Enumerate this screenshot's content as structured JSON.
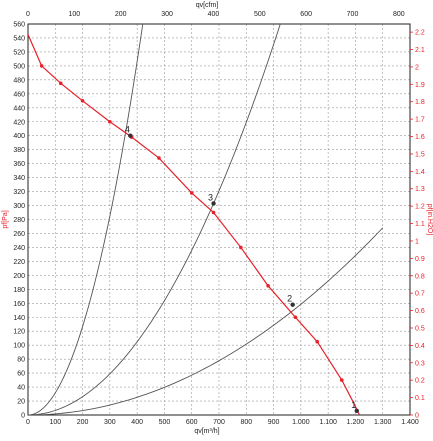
{
  "chart_data": {
    "type": "line",
    "title": "",
    "axes": {
      "x_bottom": {
        "label": "qv[m³/h]",
        "ticks": [
          "0",
          "100",
          "200",
          "300",
          "400",
          "500",
          "600",
          "700",
          "800",
          "900",
          "1.000",
          "1.100",
          "1.200",
          "1.300",
          "1.400"
        ],
        "range": [
          0,
          1400
        ]
      },
      "x_top": {
        "label": "qv[cfm]",
        "ticks": [
          "0",
          "100",
          "200",
          "300",
          "400",
          "500",
          "600",
          "700",
          "800"
        ],
        "range": [
          0,
          824
        ]
      },
      "y_left": {
        "label": "pf[Pa]",
        "ticks": [
          "0",
          "20",
          "40",
          "60",
          "80",
          "100",
          "120",
          "140",
          "160",
          "180",
          "200",
          "220",
          "240",
          "260",
          "280",
          "300",
          "320",
          "340",
          "360",
          "380",
          "400",
          "420",
          "440",
          "460",
          "480",
          "500",
          "520",
          "540",
          "560"
        ],
        "range": [
          0,
          560
        ]
      },
      "y_right": {
        "label": "pf[in.H2O]",
        "ticks": [
          "0",
          "0.1",
          "0.2",
          "0.3",
          "0.4",
          "0.5",
          "0.6",
          "0.7",
          "0.8",
          "0.9",
          "1",
          "1.1",
          "1.2",
          "1.3",
          "1.4",
          "1.5",
          "1.6",
          "1.7",
          "1.8",
          "1.9",
          "2",
          "2.1",
          "2.2"
        ],
        "range": [
          0,
          2.2466
        ]
      }
    },
    "grid": true,
    "series": [
      {
        "kind": "fan-curve",
        "color": "#e8202a",
        "x": [
          0,
          50,
          120,
          200,
          300,
          380,
          480,
          600,
          680,
          780,
          880,
          980,
          1060,
          1150,
          1190,
          1215
        ],
        "y": [
          545,
          500,
          475,
          450,
          420,
          398,
          368,
          318,
          290,
          240,
          185,
          140,
          105,
          50,
          20,
          0
        ],
        "markers_x": [
          50,
          120,
          200,
          300,
          380,
          480,
          600,
          680,
          780,
          880,
          980,
          1060,
          1150
        ],
        "markers_y": [
          500,
          475,
          450,
          420,
          398,
          368,
          318,
          290,
          240,
          185,
          140,
          105,
          50
        ]
      },
      {
        "kind": "system-curve",
        "color": "#555555",
        "k": 0.003165,
        "x_max": 465
      },
      {
        "kind": "system-curve",
        "color": "#555555",
        "k": 0.000655,
        "x_max": 935
      },
      {
        "kind": "system-curve",
        "color": "#555555",
        "k": 0.0001586,
        "x_max": 1300
      }
    ],
    "operating_points": [
      {
        "label": "4",
        "x": 375,
        "y": 400
      },
      {
        "label": "3",
        "x": 680,
        "y": 303
      },
      {
        "label": "2",
        "x": 970,
        "y": 158
      },
      {
        "label": "1",
        "x": 1205,
        "y": 6
      }
    ],
    "colors": {
      "grid": "#999999",
      "left_axis_text": "#222222",
      "right_axis_text": "#e8202a",
      "fan_curve": "#e8202a",
      "system_curve": "#555555"
    }
  }
}
